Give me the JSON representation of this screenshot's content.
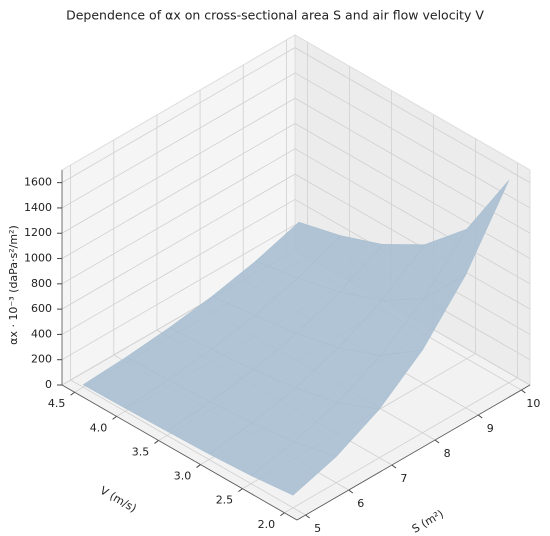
{
  "chart_data": {
    "type": "surface3d",
    "title": "Dependence of αx on cross-sectional area S and air flow velocity V",
    "xlabel": "S (m²)",
    "ylabel": "V (m/s)",
    "zlabel": "αx · 10⁻³ (daPa·s²/m²)",
    "color": "#a9bfd1",
    "x": [
      5,
      6,
      7,
      8,
      9,
      10
    ],
    "y": [
      2,
      2.5,
      3,
      3.5,
      4,
      4.5
    ],
    "z": [
      [
        100,
        207,
        384,
        655,
        1050,
        1600
      ],
      [
        64,
        133,
        246,
        419,
        672,
        1024
      ],
      [
        44,
        92,
        171,
        291,
        467,
        711
      ],
      [
        33,
        68,
        125,
        214,
        343,
        522
      ],
      [
        25,
        52,
        96,
        164,
        262,
        400
      ],
      [
        20,
        41,
        76,
        129,
        207,
        316
      ]
    ],
    "xlim": [
      4.8,
      10.2
    ],
    "ylim": [
      1.85,
      4.65
    ],
    "zlim": [
      0,
      1700
    ],
    "xticks": [
      5,
      6,
      7,
      8,
      9,
      10
    ],
    "yticks": [
      {
        "value": 2,
        "label": "2.0"
      },
      2.5,
      {
        "value": 3,
        "label": "3.0"
      },
      3.5,
      {
        "value": 4,
        "label": "4.0"
      },
      4.5
    ],
    "zticks": [
      0,
      200,
      400,
      600,
      800,
      1000,
      1200,
      1400,
      1600
    ],
    "grid": true
  }
}
